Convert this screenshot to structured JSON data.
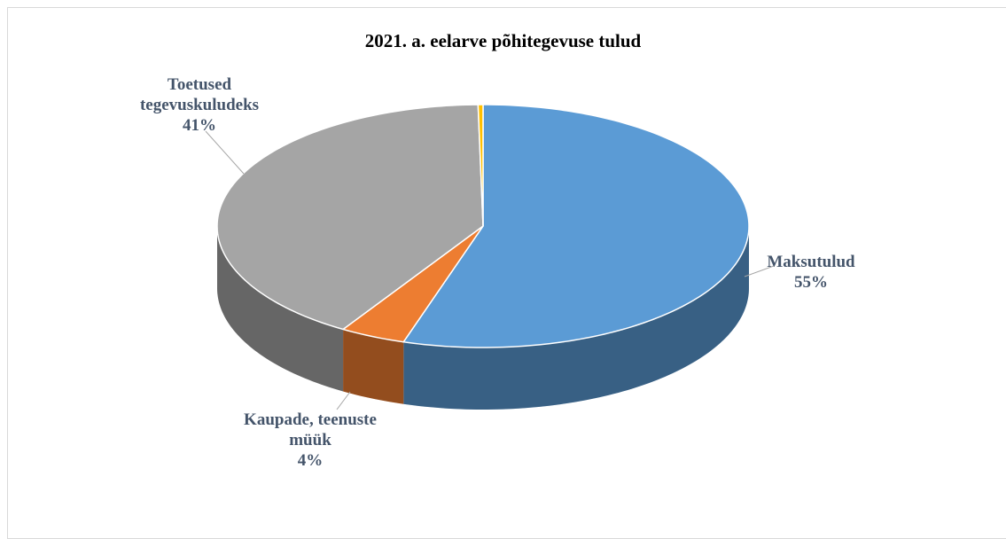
{
  "chart_data": {
    "type": "pie",
    "title": "2021. a. eelarve põhitegevuse tulud",
    "categories": [
      "Maksutulud",
      "Kaupade, teenuste müük",
      "Toetused tegevuskuludeks",
      null
    ],
    "values": [
      55,
      4,
      41,
      0.3
    ],
    "value_labels": [
      "55%",
      "4%",
      "41%",
      null
    ],
    "colors": [
      "#5b9bd5",
      "#ed7d31",
      "#a5a5a5",
      "#ffc000"
    ]
  }
}
